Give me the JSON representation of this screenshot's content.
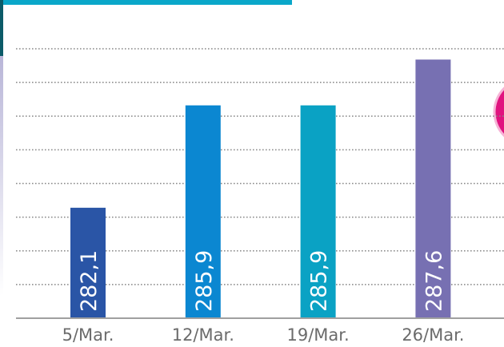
{
  "chart_data": {
    "type": "bar",
    "categories": [
      "5/Mar.",
      "12/Mar.",
      "19/Mar.",
      "26/Mar."
    ],
    "values": [
      282.1,
      285.9,
      285.9,
      287.6
    ],
    "value_labels": [
      "282,1",
      "285,9",
      "285,9",
      "287,6"
    ],
    "colors": [
      "#2a55a6",
      "#0b87d1",
      "#0aa2c4",
      "#7770b2"
    ],
    "ylim": [
      278,
      288
    ],
    "grid": true
  }
}
